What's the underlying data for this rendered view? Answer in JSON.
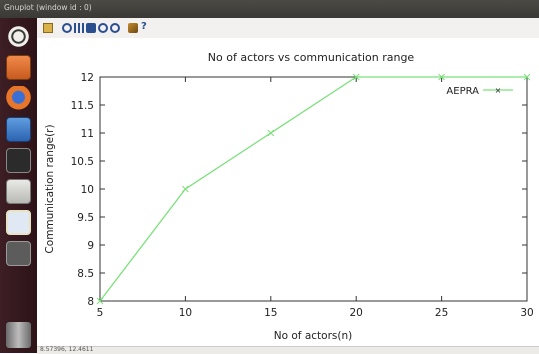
{
  "window": {
    "title": "Gnuplot (window id : 0)"
  },
  "launcher": {
    "items": [
      "dash-home",
      "files",
      "firefox",
      "writer",
      "terminal",
      "editor",
      "plot-app",
      "workspace",
      "trash"
    ]
  },
  "toolbar": {
    "icons": [
      "clipboard-icon",
      "refresh-icon",
      "grid-icon",
      "zoom-in-icon",
      "zoom-out-icon",
      "zoom-fit-icon",
      "settings-icon",
      "help-icon"
    ],
    "help_label": "?"
  },
  "status": {
    "coords": "8.57396, 12.4611"
  },
  "colors": {
    "series": "#7be07b",
    "frame": "#333333"
  },
  "chart_data": {
    "type": "line",
    "title": "No of actors vs communication range",
    "xlabel": "No of actors(n)",
    "ylabel": "Communication range(r)",
    "xlim": [
      5,
      30
    ],
    "ylim": [
      8,
      12
    ],
    "xticks": [
      "5",
      "10",
      "15",
      "20",
      "25",
      "30"
    ],
    "yticks": [
      "8",
      "8.5",
      "9",
      "9.5",
      "10",
      "10.5",
      "11",
      "11.5",
      "12"
    ],
    "grid": false,
    "legend_position": "top-right",
    "series": [
      {
        "name": "AEPRA",
        "x": [
          5,
          10,
          15,
          20,
          25,
          30
        ],
        "y": [
          8,
          10,
          11,
          12,
          12,
          12
        ]
      }
    ]
  }
}
